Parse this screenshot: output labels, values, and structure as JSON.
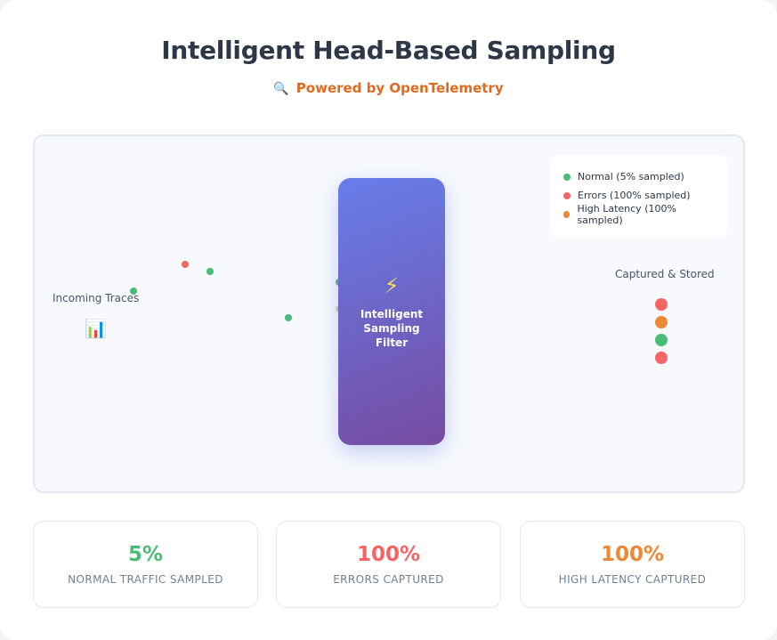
{
  "header": {
    "title": "Intelligent Head-Based Sampling",
    "subtitle_icon": "🔍",
    "subtitle": "Powered by OpenTelemetry"
  },
  "colors": {
    "normal": "#48bb78",
    "error": "#f56565",
    "latency": "#ed8936"
  },
  "legend": {
    "items": [
      {
        "label": "Normal (5% sampled)",
        "kind": "normal"
      },
      {
        "label": "Errors (100% sampled)",
        "kind": "error"
      },
      {
        "label": "High Latency (100% sampled)",
        "kind": "latency"
      }
    ]
  },
  "incoming": {
    "label": "Incoming Traces",
    "icon": "📊",
    "icon_name": "chart-icon"
  },
  "filter": {
    "icon": "⚡",
    "icon_name": "lightning-icon",
    "label": "Intelligent Sampling Filter"
  },
  "stored": {
    "label": "Captured & Stored",
    "dot_kinds": [
      "error",
      "latency",
      "normal",
      "error"
    ]
  },
  "stats": [
    {
      "value": "5%",
      "label": "NORMAL TRAFFIC SAMPLED",
      "kind": "normal"
    },
    {
      "value": "100%",
      "label": "ERRORS CAPTURED",
      "kind": "error"
    },
    {
      "value": "100%",
      "label": "HIGH LATENCY CAPTURED",
      "kind": "latency"
    }
  ]
}
